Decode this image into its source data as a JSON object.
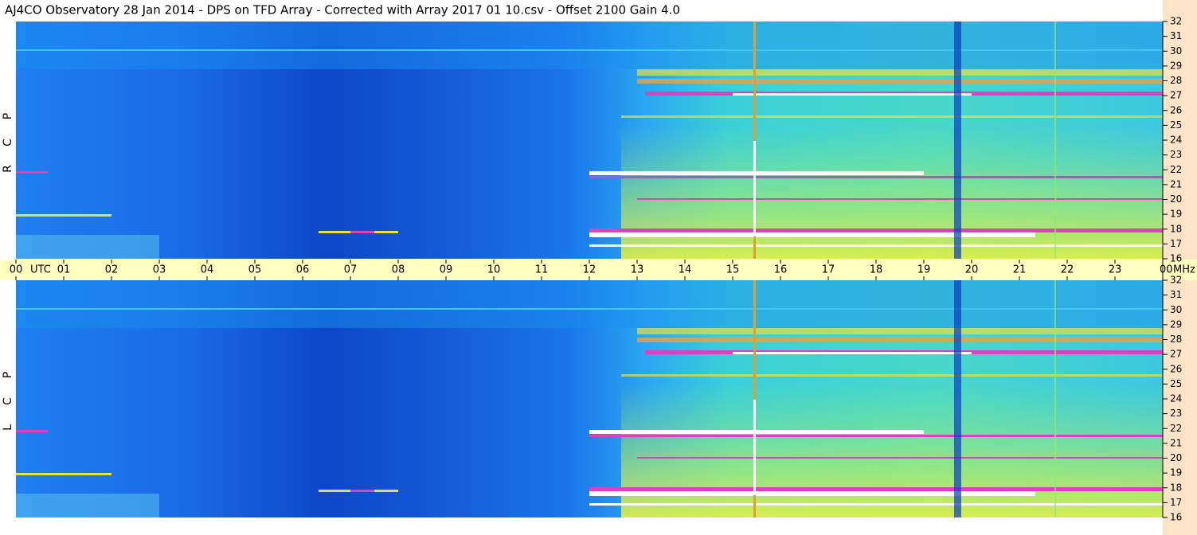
{
  "chart_data": {
    "type": "spectrogram",
    "title": "AJ4CO Observatory  28 Jan 2014  -  DPS on TFD Array  -  Corrected with Array 2017 01 10.csv  -  Offset 2100  Gain 4.0",
    "xlabel": "UTC",
    "ylabel": "MHz",
    "xlim": [
      0,
      24
    ],
    "xticks": [
      {
        "value": 0,
        "label": "00"
      },
      {
        "value": 1,
        "label": "01"
      },
      {
        "value": 2,
        "label": "02"
      },
      {
        "value": 3,
        "label": "03"
      },
      {
        "value": 4,
        "label": "04"
      },
      {
        "value": 5,
        "label": "05"
      },
      {
        "value": 6,
        "label": "06"
      },
      {
        "value": 7,
        "label": "07"
      },
      {
        "value": 8,
        "label": "08"
      },
      {
        "value": 9,
        "label": "09"
      },
      {
        "value": 10,
        "label": "10"
      },
      {
        "value": 11,
        "label": "11"
      },
      {
        "value": 12,
        "label": "12"
      },
      {
        "value": 13,
        "label": "13"
      },
      {
        "value": 14,
        "label": "14"
      },
      {
        "value": 15,
        "label": "15"
      },
      {
        "value": 16,
        "label": "16"
      },
      {
        "value": 17,
        "label": "17"
      },
      {
        "value": 18,
        "label": "18"
      },
      {
        "value": 19,
        "label": "19"
      },
      {
        "value": 20,
        "label": "20"
      },
      {
        "value": 21,
        "label": "21"
      },
      {
        "value": 22,
        "label": "22"
      },
      {
        "value": 23,
        "label": "23"
      },
      {
        "value": 24,
        "label": "00"
      }
    ],
    "ylim": [
      16,
      32
    ],
    "yticks": [
      16,
      17,
      18,
      19,
      20,
      21,
      22,
      23,
      24,
      25,
      26,
      27,
      28,
      29,
      30,
      31,
      32
    ],
    "panels": [
      {
        "label": [
          "R",
          "C",
          "P"
        ]
      },
      {
        "label": [
          "L",
          "C",
          "P"
        ]
      }
    ]
  }
}
